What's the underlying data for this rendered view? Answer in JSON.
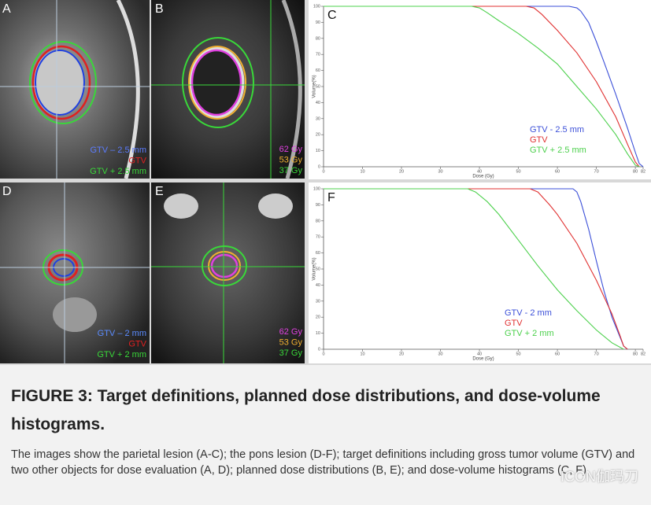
{
  "figure": {
    "panels": [
      {
        "label": "A",
        "legend": [
          {
            "text": "GTV – 2.5 mm",
            "color": "#5b7cff"
          },
          {
            "text": "GTV",
            "color": "#e02020"
          },
          {
            "text": "GTV + 2.5 mm",
            "color": "#39d839"
          }
        ]
      },
      {
        "label": "B",
        "legend": [
          {
            "text": "62 Gy",
            "color": "#e040e0"
          },
          {
            "text": "53 Gy",
            "color": "#f0b030"
          },
          {
            "text": "37 Gy",
            "color": "#39d839"
          }
        ]
      },
      {
        "label": "D",
        "legend": [
          {
            "text": "GTV – 2 mm",
            "color": "#5b8cff"
          },
          {
            "text": "GTV",
            "color": "#e02020"
          },
          {
            "text": "GTV + 2 mm",
            "color": "#39d839"
          }
        ]
      },
      {
        "label": "E",
        "legend": [
          {
            "text": "62 Gy",
            "color": "#e040e0"
          },
          {
            "text": "53 Gy",
            "color": "#f0b030"
          },
          {
            "text": "37 Gy",
            "color": "#39d839"
          }
        ]
      }
    ]
  },
  "chart_data": [
    {
      "type": "line",
      "panel": "C",
      "xlabel": "Dose (Gy)",
      "ylabel": "Volume(%)",
      "xlim": [
        0,
        82
      ],
      "ylim": [
        0,
        100
      ],
      "xticks": [
        0,
        10,
        20,
        30,
        40,
        50,
        60,
        70,
        80,
        82
      ],
      "yticks": [
        0,
        10,
        20,
        30,
        40,
        50,
        60,
        70,
        80,
        90,
        100
      ],
      "series": [
        {
          "name": "GTV - 2.5 mm",
          "color": "#3b4fd8",
          "x": [
            0,
            63,
            65,
            66,
            68,
            70,
            72,
            75,
            78,
            80,
            81,
            82
          ],
          "values": [
            100,
            100,
            99,
            97,
            90,
            78,
            65,
            45,
            24,
            9,
            2,
            0
          ]
        },
        {
          "name": "GTV",
          "color": "#e03030",
          "x": [
            0,
            52,
            54,
            56,
            60,
            65,
            70,
            75,
            78,
            80,
            81
          ],
          "values": [
            100,
            100,
            99,
            95,
            85,
            71,
            53,
            31,
            14,
            3,
            0
          ]
        },
        {
          "name": "GTV + 2.5 mm",
          "color": "#4cd04c",
          "x": [
            0,
            38,
            40,
            42,
            45,
            50,
            55,
            60,
            65,
            70,
            75,
            78,
            80,
            81
          ],
          "values": [
            100,
            100,
            99,
            96,
            91,
            83,
            74,
            64,
            50,
            36,
            20,
            8,
            1,
            0
          ]
        }
      ]
    },
    {
      "type": "line",
      "panel": "F",
      "xlabel": "Dose (Gy)",
      "ylabel": "Volume(%)",
      "xlim": [
        0,
        82
      ],
      "ylim": [
        0,
        100
      ],
      "xticks": [
        0,
        10,
        20,
        30,
        40,
        50,
        60,
        70,
        80,
        82
      ],
      "yticks": [
        0,
        10,
        20,
        30,
        40,
        50,
        60,
        70,
        80,
        90,
        100
      ],
      "series": [
        {
          "name": "GTV - 2 mm",
          "color": "#3b4fd8",
          "x": [
            0,
            64,
            65,
            66,
            68,
            70,
            72,
            74,
            76,
            77,
            78
          ],
          "values": [
            100,
            100,
            98,
            92,
            75,
            55,
            36,
            20,
            8,
            2,
            0
          ]
        },
        {
          "name": "GTV",
          "color": "#e03030",
          "x": [
            0,
            53,
            55,
            58,
            60,
            65,
            70,
            74,
            76,
            77,
            78
          ],
          "values": [
            100,
            100,
            98,
            90,
            84,
            66,
            43,
            22,
            9,
            2,
            0
          ]
        },
        {
          "name": "GTV + 2 mm",
          "color": "#4cd04c",
          "x": [
            0,
            37,
            39,
            42,
            45,
            50,
            55,
            60,
            65,
            70,
            74,
            77
          ],
          "values": [
            100,
            100,
            98,
            92,
            84,
            68,
            52,
            37,
            24,
            12,
            4,
            0
          ]
        }
      ]
    }
  ],
  "caption": {
    "title": "FIGURE 3: Target definitions, planned dose distributions, and dose-volume histograms.",
    "body": "The images show the parietal lesion (A-C); the pons lesion (D-F); target definitions including gross tumor volume (GTV) and two other objects for dose evaluation (A, D); planned dose distributions (B, E); and dose-volume histograms (C, F).",
    "watermark": "ICON伽玛刀"
  }
}
